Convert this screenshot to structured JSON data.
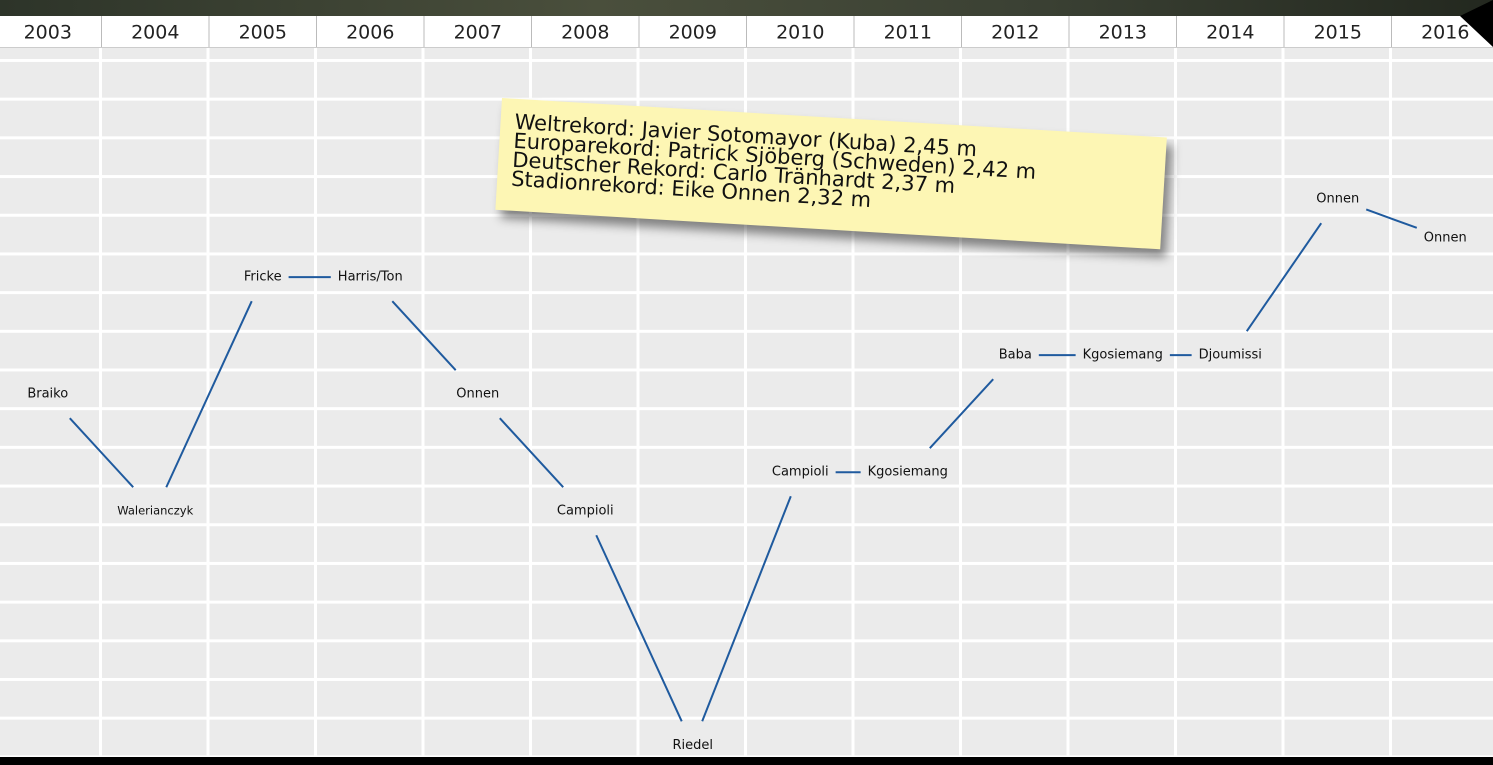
{
  "chart_data": {
    "type": "line",
    "categories": [
      "2003",
      "2004",
      "2005",
      "2006",
      "2007",
      "2008",
      "2009",
      "2010",
      "2011",
      "2012",
      "2013",
      "2014",
      "2015",
      "2016"
    ],
    "values": [
      9,
      6,
      12,
      12,
      9,
      6,
      0,
      7,
      7,
      10,
      10,
      10,
      14,
      13
    ],
    "point_labels": [
      "Braiko",
      "Walerianczyk",
      "Fricke",
      "Harris/Ton",
      "Onnen",
      "Campioli",
      "Riedel",
      "Campioli",
      "Kgosiemang",
      "Baba",
      "Kgosiemang",
      "Djoumissi",
      "Onnen",
      "Onnen"
    ],
    "color": "#1f5a9e",
    "ylim": [
      -0.3,
      17.9
    ],
    "annotations": [
      "Weltrekord: Javier Sotomayor (Kuba) 2,45 m",
      "Europarekord: Patrick Sjöberg (Schweden) 2,42 m",
      "Deutscher Rekord: Carlo Tränhardt 2,37 m",
      "Stadionrekord: Eike Onnen 2,32 m"
    ]
  }
}
